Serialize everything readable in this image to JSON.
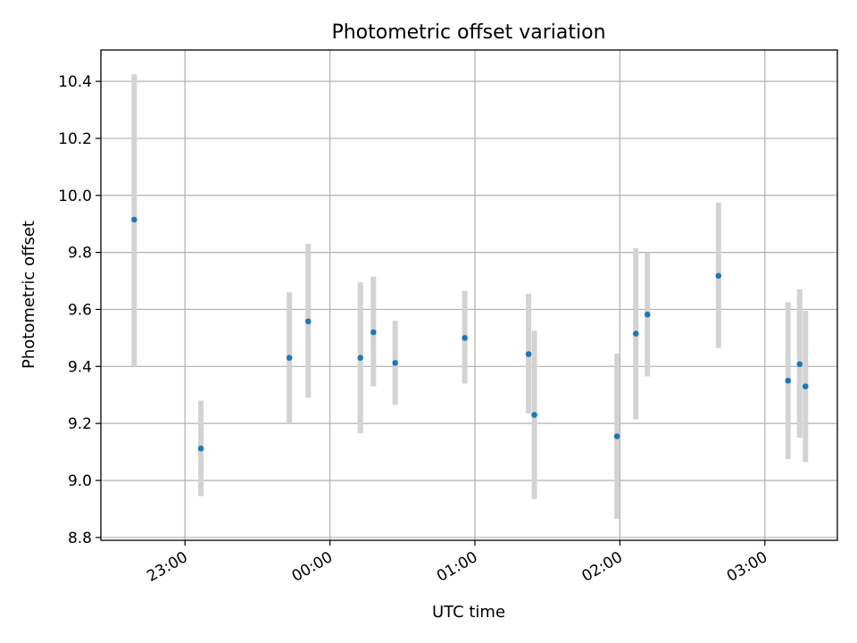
{
  "chart_data": {
    "type": "scatter",
    "title": "Photometric offset variation",
    "xlabel": "UTC time",
    "ylabel": "Photometric offset",
    "x_unit": "hours relative to 00:00 UTC",
    "xlim": [
      -1.58,
      3.5
    ],
    "ylim": [
      8.79,
      10.51
    ],
    "x_ticks": [
      {
        "value": -1,
        "label": "23:00"
      },
      {
        "value": 0,
        "label": "00:00"
      },
      {
        "value": 1,
        "label": "01:00"
      },
      {
        "value": 2,
        "label": "02:00"
      },
      {
        "value": 3,
        "label": "03:00"
      }
    ],
    "y_ticks": [
      {
        "value": 8.8,
        "label": "8.8"
      },
      {
        "value": 9.0,
        "label": "9.0"
      },
      {
        "value": 9.2,
        "label": "9.2"
      },
      {
        "value": 9.4,
        "label": "9.4"
      },
      {
        "value": 9.6,
        "label": "9.6"
      },
      {
        "value": 9.8,
        "label": "9.8"
      },
      {
        "value": 10.0,
        "label": "10.0"
      },
      {
        "value": 10.2,
        "label": "10.2"
      },
      {
        "value": 10.4,
        "label": "10.4"
      }
    ],
    "grid": true,
    "colors": {
      "point": "#1f77b4",
      "errorbar": "#d3d3d3"
    },
    "series": [
      {
        "points": [
          {
            "x": -1.35,
            "y": 9.915,
            "ylo": 9.4,
            "yhi": 10.425
          },
          {
            "x": -0.89,
            "y": 9.112,
            "ylo": 8.945,
            "yhi": 9.28
          },
          {
            "x": -0.28,
            "y": 9.43,
            "ylo": 9.2,
            "yhi": 9.66
          },
          {
            "x": -0.15,
            "y": 9.558,
            "ylo": 9.29,
            "yhi": 9.83
          },
          {
            "x": 0.21,
            "y": 9.43,
            "ylo": 9.165,
            "yhi": 9.695
          },
          {
            "x": 0.3,
            "y": 9.52,
            "ylo": 9.33,
            "yhi": 9.715
          },
          {
            "x": 0.45,
            "y": 9.412,
            "ylo": 9.265,
            "yhi": 9.56
          },
          {
            "x": 0.93,
            "y": 9.5,
            "ylo": 9.34,
            "yhi": 9.665
          },
          {
            "x": 1.37,
            "y": 9.443,
            "ylo": 9.235,
            "yhi": 9.655
          },
          {
            "x": 1.41,
            "y": 9.23,
            "ylo": 8.935,
            "yhi": 9.525
          },
          {
            "x": 1.98,
            "y": 9.155,
            "ylo": 8.865,
            "yhi": 9.445
          },
          {
            "x": 2.11,
            "y": 9.515,
            "ylo": 9.215,
            "yhi": 9.815
          },
          {
            "x": 2.19,
            "y": 9.582,
            "ylo": 9.365,
            "yhi": 9.8
          },
          {
            "x": 2.68,
            "y": 9.718,
            "ylo": 9.465,
            "yhi": 9.975
          },
          {
            "x": 3.16,
            "y": 9.35,
            "ylo": 9.075,
            "yhi": 9.625
          },
          {
            "x": 3.24,
            "y": 9.408,
            "ylo": 9.15,
            "yhi": 9.67
          },
          {
            "x": 3.28,
            "y": 9.33,
            "ylo": 9.065,
            "yhi": 9.595
          }
        ]
      }
    ]
  }
}
